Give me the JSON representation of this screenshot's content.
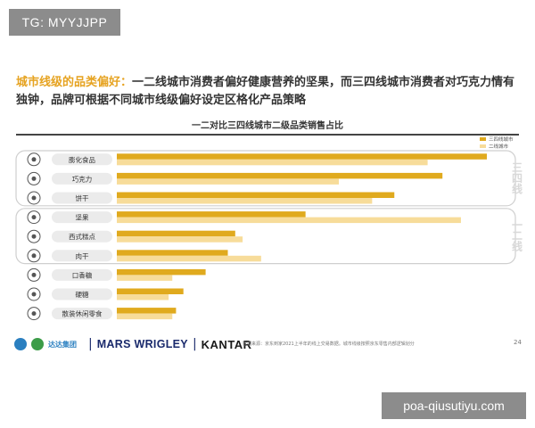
{
  "badge": "TG: MYYJJPP",
  "headline": {
    "prefix": "城市线级的品类偏好：",
    "text": "一二线城市消费者偏好健康营养的坚果，而三四线城市消费者对巧克力情有独钟，品牌可根据不同城市线级偏好设定区格化产品策略"
  },
  "footer": {
    "logo_cn": "达达集团",
    "mars": "MARS WRIGLEY",
    "kantar": "KANTAR",
    "note": "数据来源：京东到家2021上半年的线上交易数据。城市线级按照京东零售内部逻辑划分",
    "page": "24"
  },
  "watermark": "poa-qiusutiyu.com",
  "colors": {
    "tier34": "#e0aa1e",
    "tier12": "#f7dc9a",
    "accent": "#e6a321"
  },
  "chart_data": {
    "type": "bar",
    "orientation": "horizontal",
    "title": "一二对比三四线城市二级品类销售占比",
    "categories": [
      "膨化食品",
      "巧克力",
      "饼干",
      "坚果",
      "西式糕点",
      "肉干",
      "口香糖",
      "硬糖",
      "散装休闲零食"
    ],
    "icons": [
      "chips-icon",
      "chocolate-icon",
      "cookie-icon",
      "nut-icon",
      "cake-icon",
      "jerky-icon",
      "gum-icon",
      "candy-icon",
      "snack-bag-icon"
    ],
    "series": [
      {
        "name": "三四线城市",
        "color": "#e0aa1e",
        "values": [
          100,
          88,
          75,
          51,
          32,
          30,
          24,
          18,
          16
        ]
      },
      {
        "name": "二线城市",
        "color": "#f7dc9a",
        "values": [
          84,
          60,
          69,
          93,
          34,
          39,
          15,
          14,
          15
        ]
      }
    ],
    "groups": [
      {
        "label": "三四线",
        "rows": [
          0,
          1,
          2
        ]
      },
      {
        "label": "一二线",
        "rows": [
          3,
          4,
          5
        ]
      }
    ],
    "xlim": [
      0,
      100
    ],
    "legend": "top-right",
    "grid": false
  }
}
